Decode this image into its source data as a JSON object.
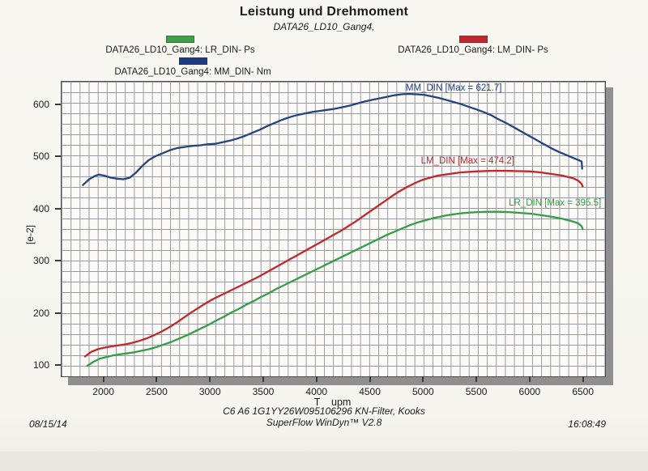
{
  "header": {
    "title": "Leistung und Drehmoment",
    "subtitle": "DATA26_LD10_Gang4,"
  },
  "legend": [
    {
      "label": "DATA26_LD10_Gang4: LR_DIN-  Ps",
      "color": "#3f9e4a"
    },
    {
      "label": "DATA26_LD10_Gang4: LM_DIN-  Ps",
      "color": "#c2272d"
    },
    {
      "label": "DATA26_LD10_Gang4: MM_DIN-  Nm",
      "color": "#1e3a80"
    }
  ],
  "chart_data": {
    "type": "line",
    "title": "Leistung und Drehmoment",
    "subtitle": "DATA26_LD10_Gang4,",
    "xlabel": "T    upm",
    "ylabel": "[e-2]",
    "xlim": [
      1600,
      6700
    ],
    "ylim": [
      80,
      645
    ],
    "x_ticks": [
      2000,
      2500,
      3000,
      3500,
      4000,
      4500,
      5000,
      5500,
      6000,
      6500
    ],
    "y_ticks": [
      100,
      200,
      300,
      400,
      500,
      600
    ],
    "grid": true,
    "legend_position": "top",
    "series": [
      {
        "name": "MM_DIN",
        "unit": "Nm",
        "color": "#24437f",
        "max": 621.7,
        "annotation": "MM_DIN [Max = 621.7]",
        "annotation_anchor": [
          5280,
          633
        ],
        "points": [
          [
            1800,
            447
          ],
          [
            1860,
            458
          ],
          [
            1910,
            464
          ],
          [
            1950,
            467
          ],
          [
            2000,
            465
          ],
          [
            2060,
            461
          ],
          [
            2120,
            459
          ],
          [
            2180,
            458
          ],
          [
            2240,
            461
          ],
          [
            2300,
            471
          ],
          [
            2360,
            484
          ],
          [
            2420,
            495
          ],
          [
            2480,
            502
          ],
          [
            2550,
            508
          ],
          [
            2620,
            514
          ],
          [
            2690,
            518
          ],
          [
            2760,
            520
          ],
          [
            2830,
            522
          ],
          [
            2900,
            523
          ],
          [
            2970,
            525
          ],
          [
            3040,
            526
          ],
          [
            3110,
            529
          ],
          [
            3180,
            532
          ],
          [
            3250,
            536
          ],
          [
            3320,
            541
          ],
          [
            3390,
            547
          ],
          [
            3460,
            553
          ],
          [
            3530,
            560
          ],
          [
            3600,
            566
          ],
          [
            3670,
            572
          ],
          [
            3740,
            577
          ],
          [
            3810,
            581
          ],
          [
            3880,
            584
          ],
          [
            3950,
            587
          ],
          [
            4020,
            589
          ],
          [
            4090,
            591
          ],
          [
            4160,
            593
          ],
          [
            4230,
            596
          ],
          [
            4300,
            599
          ],
          [
            4370,
            603
          ],
          [
            4440,
            607
          ],
          [
            4510,
            610
          ],
          [
            4580,
            613
          ],
          [
            4650,
            616
          ],
          [
            4720,
            619
          ],
          [
            4790,
            621
          ],
          [
            4860,
            621.7
          ],
          [
            4930,
            621
          ],
          [
            5000,
            620
          ],
          [
            5070,
            617
          ],
          [
            5140,
            614
          ],
          [
            5210,
            610
          ],
          [
            5280,
            606
          ],
          [
            5350,
            602
          ],
          [
            5420,
            597
          ],
          [
            5490,
            592
          ],
          [
            5560,
            587
          ],
          [
            5630,
            581
          ],
          [
            5700,
            573
          ],
          [
            5770,
            566
          ],
          [
            5840,
            558
          ],
          [
            5910,
            550
          ],
          [
            5980,
            542
          ],
          [
            6050,
            534
          ],
          [
            6120,
            526
          ],
          [
            6190,
            518
          ],
          [
            6260,
            511
          ],
          [
            6330,
            505
          ],
          [
            6400,
            499
          ],
          [
            6460,
            494
          ],
          [
            6480,
            492
          ],
          [
            6485,
            478
          ]
        ]
      },
      {
        "name": "LM_DIN",
        "unit": "Ps",
        "color": "#c2272d",
        "max": 474.2,
        "annotation": "LM_DIN [Max = 474.2]",
        "annotation_anchor": [
          5410,
          493
        ],
        "points": [
          [
            1820,
            118
          ],
          [
            1880,
            127
          ],
          [
            1940,
            132
          ],
          [
            2000,
            135
          ],
          [
            2060,
            137
          ],
          [
            2120,
            139
          ],
          [
            2190,
            141
          ],
          [
            2260,
            144
          ],
          [
            2330,
            148
          ],
          [
            2400,
            153
          ],
          [
            2470,
            159
          ],
          [
            2540,
            166
          ],
          [
            2610,
            174
          ],
          [
            2680,
            183
          ],
          [
            2750,
            193
          ],
          [
            2820,
            203
          ],
          [
            2890,
            212
          ],
          [
            2960,
            221
          ],
          [
            3030,
            229
          ],
          [
            3100,
            236
          ],
          [
            3170,
            243
          ],
          [
            3240,
            250
          ],
          [
            3310,
            257
          ],
          [
            3380,
            264
          ],
          [
            3450,
            271
          ],
          [
            3520,
            279
          ],
          [
            3590,
            287
          ],
          [
            3660,
            295
          ],
          [
            3730,
            303
          ],
          [
            3800,
            311
          ],
          [
            3870,
            319
          ],
          [
            3940,
            327
          ],
          [
            4010,
            335
          ],
          [
            4080,
            343
          ],
          [
            4150,
            351
          ],
          [
            4220,
            359
          ],
          [
            4290,
            368
          ],
          [
            4360,
            377
          ],
          [
            4430,
            387
          ],
          [
            4500,
            397
          ],
          [
            4570,
            407
          ],
          [
            4640,
            417
          ],
          [
            4710,
            427
          ],
          [
            4780,
            436
          ],
          [
            4850,
            444
          ],
          [
            4920,
            451
          ],
          [
            4990,
            457
          ],
          [
            5060,
            461
          ],
          [
            5130,
            465
          ],
          [
            5200,
            467
          ],
          [
            5270,
            469
          ],
          [
            5340,
            471
          ],
          [
            5410,
            472
          ],
          [
            5480,
            473
          ],
          [
            5550,
            473.5
          ],
          [
            5620,
            474
          ],
          [
            5700,
            474.2
          ],
          [
            5800,
            474
          ],
          [
            5900,
            473.5
          ],
          [
            6000,
            473
          ],
          [
            6100,
            471
          ],
          [
            6200,
            468
          ],
          [
            6300,
            465
          ],
          [
            6400,
            460
          ],
          [
            6450,
            455
          ],
          [
            6480,
            449
          ],
          [
            6490,
            444
          ]
        ]
      },
      {
        "name": "LR_DIN",
        "unit": "Ps",
        "color": "#339e48",
        "max": 395.5,
        "annotation": "LR_DIN [Max = 395.5]",
        "annotation_anchor": [
          6230,
          412
        ],
        "points": [
          [
            1840,
            100
          ],
          [
            1900,
            108
          ],
          [
            1960,
            114
          ],
          [
            2020,
            117
          ],
          [
            2080,
            120
          ],
          [
            2140,
            122
          ],
          [
            2210,
            124
          ],
          [
            2280,
            126
          ],
          [
            2350,
            129
          ],
          [
            2420,
            132
          ],
          [
            2490,
            136
          ],
          [
            2560,
            141
          ],
          [
            2630,
            146
          ],
          [
            2700,
            152
          ],
          [
            2770,
            158
          ],
          [
            2840,
            165
          ],
          [
            2910,
            172
          ],
          [
            2980,
            179
          ],
          [
            3050,
            187
          ],
          [
            3120,
            194
          ],
          [
            3190,
            202
          ],
          [
            3260,
            209
          ],
          [
            3330,
            217
          ],
          [
            3400,
            224
          ],
          [
            3470,
            232
          ],
          [
            3540,
            239
          ],
          [
            3610,
            247
          ],
          [
            3680,
            254
          ],
          [
            3750,
            261
          ],
          [
            3820,
            268
          ],
          [
            3890,
            275
          ],
          [
            3960,
            282
          ],
          [
            4030,
            289
          ],
          [
            4100,
            296
          ],
          [
            4170,
            303
          ],
          [
            4240,
            310
          ],
          [
            4310,
            317
          ],
          [
            4380,
            324
          ],
          [
            4450,
            331
          ],
          [
            4520,
            338
          ],
          [
            4590,
            345
          ],
          [
            4660,
            352
          ],
          [
            4730,
            358
          ],
          [
            4800,
            364
          ],
          [
            4870,
            370
          ],
          [
            4940,
            375
          ],
          [
            5010,
            379
          ],
          [
            5080,
            383
          ],
          [
            5150,
            386
          ],
          [
            5220,
            389
          ],
          [
            5290,
            391
          ],
          [
            5360,
            393
          ],
          [
            5430,
            394
          ],
          [
            5500,
            395
          ],
          [
            5600,
            395.5
          ],
          [
            5700,
            395.5
          ],
          [
            5800,
            395
          ],
          [
            5900,
            393.5
          ],
          [
            6000,
            392
          ],
          [
            6100,
            389
          ],
          [
            6200,
            386
          ],
          [
            6300,
            382
          ],
          [
            6400,
            377
          ],
          [
            6450,
            373
          ],
          [
            6480,
            368
          ],
          [
            6490,
            362
          ]
        ]
      }
    ]
  },
  "footer": {
    "vehicle": "C6 A6 1G1YY26W095106296 KN-Filter, Kooks",
    "software": "SuperFlow WinDyn™ V2.8",
    "date": "08/15/14",
    "time": "16:08:49"
  }
}
